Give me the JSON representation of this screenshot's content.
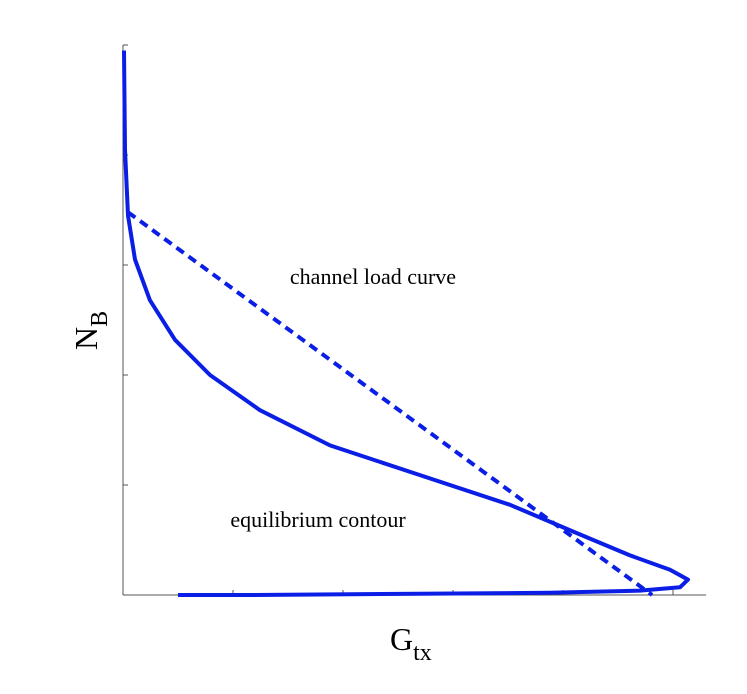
{
  "chart_data": {
    "type": "line",
    "xlabel": "G",
    "xlabel_sub": "tx",
    "ylabel": "N",
    "ylabel_sub": "B",
    "xlim": [
      0,
      5.3
    ],
    "xticks": [
      0,
      1,
      2,
      3,
      4,
      5
    ],
    "ylim": [
      0,
      5
    ],
    "yticks": [
      0,
      1,
      2,
      3,
      4,
      5
    ],
    "grid": false,
    "series": [
      {
        "name": "equilibrium contour",
        "color": "#0a1ee6",
        "dash": false,
        "x": [
          0.009,
          0.018,
          0.045,
          0.109,
          0.245,
          0.473,
          0.791,
          1.245,
          1.882,
          2.7,
          3.518,
          4.155,
          4.609,
          4.973,
          5.136,
          5.064,
          4.7,
          3.882,
          2.518,
          1.155,
          0.5
        ],
        "values": [
          4.95,
          4.05,
          3.45,
          3.05,
          2.68,
          2.32,
          2.0,
          1.68,
          1.36,
          1.09,
          0.82,
          0.55,
          0.36,
          0.23,
          0.14,
          0.07,
          0.04,
          0.02,
          0.01,
          0,
          0
        ]
      },
      {
        "name": "channel load curve",
        "color": "#0a1ee6",
        "dash": true,
        "x": [
          0.045,
          4.81
        ],
        "values": [
          3.48,
          0
        ]
      }
    ]
  }
}
